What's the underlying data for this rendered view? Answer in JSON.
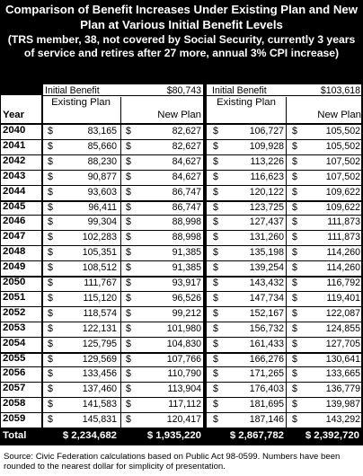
{
  "title": {
    "main": "Comparison of Benefit Increases Under Existing Plan and New Plan at Various Initial Benefit Levels",
    "sub": "(TRS member, 38, not covered by Social Security, currently 3 years of service and retires after 27 more, annual 3% CPI increase)"
  },
  "headers": {
    "initial_benefit_label": "Initial Benefit",
    "left_initial_value": "$80,743",
    "right_initial_value": "$103,618",
    "year": "Year",
    "existing_plan": "Existing Plan",
    "new_plan": "New Plan",
    "currency": "$"
  },
  "rows": [
    {
      "year": "2040",
      "left_existing": "83,165",
      "left_new": "82,627",
      "right_existing": "106,727",
      "right_new": "105,502"
    },
    {
      "year": "2041",
      "left_existing": "85,660",
      "left_new": "82,627",
      "right_existing": "109,928",
      "right_new": "105,502"
    },
    {
      "year": "2042",
      "left_existing": "88,230",
      "left_new": "84,627",
      "right_existing": "113,226",
      "right_new": "107,502"
    },
    {
      "year": "2043",
      "left_existing": "90,877",
      "left_new": "84,627",
      "right_existing": "116,623",
      "right_new": "107,502"
    },
    {
      "year": "2044",
      "left_existing": "93,603",
      "left_new": "86,747",
      "right_existing": "120,122",
      "right_new": "109,622"
    },
    {
      "year": "2045",
      "left_existing": "96,411",
      "left_new": "86,747",
      "right_existing": "123,725",
      "right_new": "109,622"
    },
    {
      "year": "2046",
      "left_existing": "99,304",
      "left_new": "88,998",
      "right_existing": "127,437",
      "right_new": "111,873"
    },
    {
      "year": "2047",
      "left_existing": "102,283",
      "left_new": "88,998",
      "right_existing": "131,260",
      "right_new": "111,873"
    },
    {
      "year": "2048",
      "left_existing": "105,351",
      "left_new": "91,385",
      "right_existing": "135,198",
      "right_new": "114,260"
    },
    {
      "year": "2049",
      "left_existing": "108,512",
      "left_new": "91,385",
      "right_existing": "139,254",
      "right_new": "114,260"
    },
    {
      "year": "2050",
      "left_existing": "111,767",
      "left_new": "93,917",
      "right_existing": "143,432",
      "right_new": "116,792"
    },
    {
      "year": "2051",
      "left_existing": "115,120",
      "left_new": "96,526",
      "right_existing": "147,734",
      "right_new": "119,401"
    },
    {
      "year": "2052",
      "left_existing": "118,574",
      "left_new": "99,212",
      "right_existing": "152,167",
      "right_new": "122,087"
    },
    {
      "year": "2053",
      "left_existing": "122,131",
      "left_new": "101,980",
      "right_existing": "156,732",
      "right_new": "124,855"
    },
    {
      "year": "2054",
      "left_existing": "125,795",
      "left_new": "104,830",
      "right_existing": "161,433",
      "right_new": "127,705"
    },
    {
      "year": "2055",
      "left_existing": "129,569",
      "left_new": "107,766",
      "right_existing": "166,276",
      "right_new": "130,641"
    },
    {
      "year": "2056",
      "left_existing": "133,456",
      "left_new": "110,790",
      "right_existing": "171,265",
      "right_new": "133,665"
    },
    {
      "year": "2057",
      "left_existing": "137,460",
      "left_new": "113,904",
      "right_existing": "176,403",
      "right_new": "136,779"
    },
    {
      "year": "2058",
      "left_existing": "141,583",
      "left_new": "117,112",
      "right_existing": "181,695",
      "right_new": "139,987"
    },
    {
      "year": "2059",
      "left_existing": "145,831",
      "left_new": "120,417",
      "right_existing": "187,146",
      "right_new": "143,292"
    }
  ],
  "totals": {
    "label": "Total",
    "left_existing": "$ 2,234,682",
    "left_new": "$ 1,935,220",
    "right_existing": "$ 2,867,782",
    "right_new": "$ 2,392,720"
  },
  "source": "Source: Civic Federation calculations based on Public Act 98-0599. Numbers have been rounded to the nearest dollar for simplicity of presentation."
}
